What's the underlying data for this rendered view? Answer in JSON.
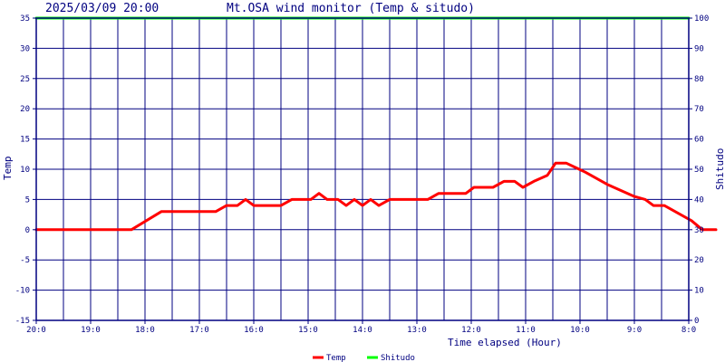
{
  "header": {
    "timestamp": "2025/03/09 20:00",
    "title": "Mt.OSA wind monitor (Temp & situdo)"
  },
  "colors": {
    "frame": "#000080",
    "grid": "#000080",
    "temp_line": "#ff0000",
    "humidity_line": "#00ff00",
    "text": "#000080"
  },
  "chart_data": {
    "type": "line",
    "xlabel": "Time elapsed (Hour)",
    "ylabel_left": "Temp",
    "ylabel_right": "Shitudo",
    "ylim_left": [
      -15,
      35
    ],
    "yticks_left": [
      35,
      30,
      25,
      20,
      15,
      10,
      5,
      0,
      -5,
      -10,
      -15
    ],
    "ylim_right": [
      0,
      100
    ],
    "yticks_right": [
      100,
      90,
      80,
      70,
      60,
      50,
      40,
      30,
      20,
      10,
      0
    ],
    "xlim": [
      20,
      8
    ],
    "xticks": [
      {
        "x": 20,
        "label": "20:0"
      },
      {
        "x": 19,
        "label": "19:0"
      },
      {
        "x": 18,
        "label": "18:0"
      },
      {
        "x": 17,
        "label": "17:0"
      },
      {
        "x": 16,
        "label": "16:0"
      },
      {
        "x": 15,
        "label": "15:0"
      },
      {
        "x": 14,
        "label": "14:0"
      },
      {
        "x": 13,
        "label": "13:0"
      },
      {
        "x": 12,
        "label": "12:0"
      },
      {
        "x": 11,
        "label": "11:0"
      },
      {
        "x": 10,
        "label": "10:0"
      },
      {
        "x": 9,
        "label": "9:0"
      },
      {
        "x": 8,
        "label": "8:0"
      }
    ],
    "grid": true,
    "legend_position": "bottom",
    "series": [
      {
        "name": "Temp",
        "axis": "left",
        "color": "#ff0000",
        "points": [
          [
            20.0,
            0
          ],
          [
            18.25,
            0
          ],
          [
            17.7,
            3
          ],
          [
            16.7,
            3
          ],
          [
            16.5,
            4
          ],
          [
            16.3,
            4
          ],
          [
            16.15,
            5
          ],
          [
            16.0,
            4
          ],
          [
            15.5,
            4
          ],
          [
            15.3,
            5
          ],
          [
            14.95,
            5
          ],
          [
            14.8,
            6
          ],
          [
            14.65,
            5
          ],
          [
            14.45,
            5
          ],
          [
            14.3,
            4
          ],
          [
            14.15,
            5
          ],
          [
            14.0,
            4
          ],
          [
            13.85,
            5
          ],
          [
            13.7,
            4
          ],
          [
            13.5,
            5
          ],
          [
            12.8,
            5
          ],
          [
            12.6,
            6
          ],
          [
            12.1,
            6
          ],
          [
            11.95,
            7
          ],
          [
            11.6,
            7
          ],
          [
            11.4,
            8
          ],
          [
            11.2,
            8
          ],
          [
            11.05,
            7
          ],
          [
            10.85,
            8
          ],
          [
            10.6,
            9
          ],
          [
            10.45,
            11
          ],
          [
            10.25,
            11
          ],
          [
            9.9,
            9.5
          ],
          [
            9.5,
            7.5
          ],
          [
            9.0,
            5.5
          ],
          [
            8.8,
            5
          ],
          [
            8.65,
            4
          ],
          [
            8.45,
            4
          ],
          [
            7.95,
            1.5
          ],
          [
            7.75,
            0
          ],
          [
            7.5,
            0
          ]
        ]
      },
      {
        "name": "Shitudo",
        "axis": "right",
        "color": "#00ff00",
        "points": [
          [
            20.0,
            100
          ],
          [
            8.0,
            100
          ]
        ]
      }
    ]
  }
}
